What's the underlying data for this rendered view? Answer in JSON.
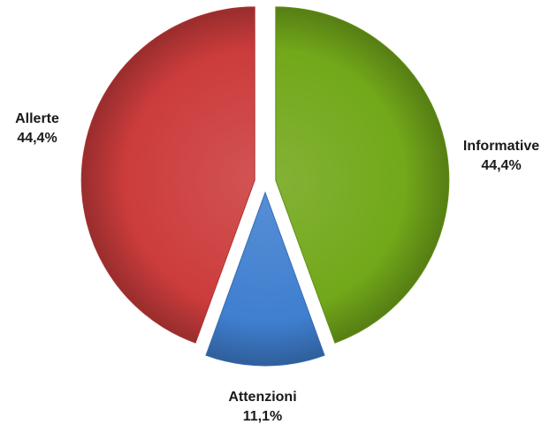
{
  "chart_data": {
    "type": "pie",
    "title": "",
    "slices": [
      {
        "label": "Informative",
        "value": 44.4,
        "value_label": "44,4%",
        "color": "#72a81a"
      },
      {
        "label": "Attenzioni",
        "value": 11.1,
        "value_label": "11,1%",
        "color": "#3f7fcf"
      },
      {
        "label": "Allerte",
        "value": 44.4,
        "value_label": "44,4%",
        "color": "#cc3c3c"
      }
    ],
    "exploded": true,
    "legend": "none",
    "labels_outside": true
  }
}
